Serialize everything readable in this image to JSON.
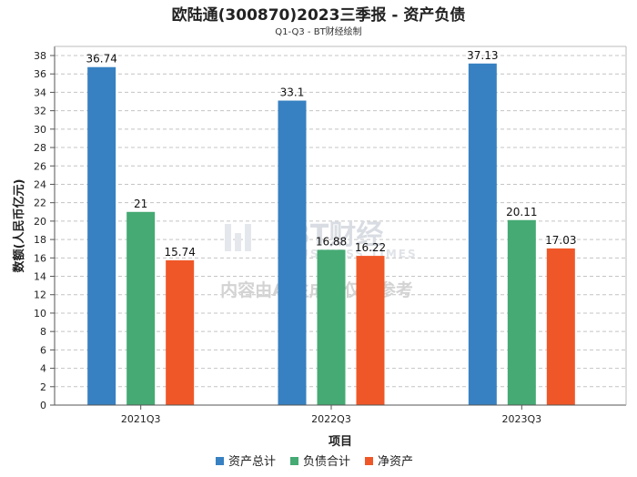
{
  "chart_data": {
    "type": "bar",
    "title": "欧陆通(300870)2023三季报 - 资产负债",
    "subtitle": "Q1-Q3 - BT财经绘制",
    "xlabel": "项目",
    "ylabel": "数额(人民币亿元)",
    "categories": [
      "2021Q3",
      "2022Q3",
      "2023Q3"
    ],
    "ylim": [
      0,
      38
    ],
    "yticks": [
      0,
      2,
      4,
      6,
      8,
      10,
      12,
      14,
      16,
      18,
      20,
      22,
      24,
      26,
      28,
      30,
      32,
      34,
      36,
      38
    ],
    "grid": true,
    "legend_position": "bottom",
    "series": [
      {
        "name": "资产总计",
        "color": "#3781c2",
        "values": [
          36.74,
          33.1,
          37.13
        ],
        "labels": [
          "36.74",
          "33.1",
          "37.13"
        ]
      },
      {
        "name": "负债合计",
        "color": "#45aa73",
        "values": [
          21,
          16.88,
          20.11
        ],
        "labels": [
          "21",
          "16.88",
          "20.11"
        ]
      },
      {
        "name": "净资产",
        "color": "#f05728",
        "values": [
          15.74,
          16.22,
          17.03
        ],
        "labels": [
          "15.74",
          "16.22",
          "17.03"
        ]
      }
    ]
  },
  "watermark": {
    "brand": "BT财经",
    "brand_sub": "BUSINESS TIMES",
    "notice": "内容由AI生成，仅供参考"
  }
}
